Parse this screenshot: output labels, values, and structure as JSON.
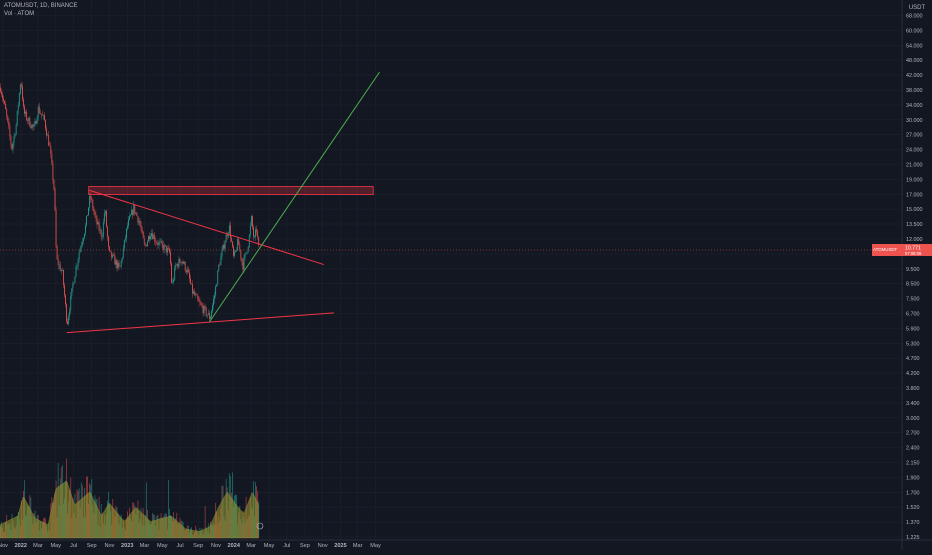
{
  "header": {
    "symbol_line": "ATOMUSDT, 1D, BINANCE",
    "volume_line": "Vol · ATOM"
  },
  "price_scale": {
    "currency": "USDT",
    "current_price_tag": "ATOMUSDT",
    "current_price": "10.771",
    "current_price_sub": "07:08:08"
  },
  "colors": {
    "background": "#131722",
    "up": "#26a69a",
    "down": "#ef5350",
    "trendline_red": "#f23645",
    "trendline_green": "#4caf50",
    "resistance_zone": "#f23645",
    "volume_ma": "#9a9a2e",
    "text": "#b2b5be"
  },
  "chart_data": {
    "type": "candlestick",
    "title": "ATOMUSDT, 1D, BINANCE",
    "y_scale": "log",
    "y_ticks": [
      "68.000",
      "60.000",
      "54.000",
      "48.000",
      "42.000",
      "38.000",
      "34.000",
      "30.000",
      "27.000",
      "24.000",
      "21.000",
      "19.000",
      "17.000",
      "15.000",
      "13.500",
      "12.000",
      "10.500",
      "9.500",
      "8.500",
      "7.500",
      "6.700",
      "5.900",
      "5.300",
      "4.700",
      "4.200",
      "3.800",
      "3.400",
      "3.000",
      "2.700",
      "2.400",
      "2.150",
      "1.900",
      "1.700",
      "1.520",
      "1.370",
      "1.225"
    ],
    "x_ticks": [
      "Nov",
      "2022",
      "Mar",
      "May",
      "Jul",
      "Sep",
      "Nov",
      "2023",
      "Mar",
      "May",
      "Jul",
      "Sep",
      "Nov",
      "2024",
      "Mar",
      "May",
      "Jul",
      "Sep",
      "Nov",
      "2025",
      "Mar",
      "May"
    ],
    "price_path": [
      {
        "date": "2021-11-01",
        "close": 39
      },
      {
        "date": "2021-11-20",
        "close": 32
      },
      {
        "date": "2021-12-10",
        "close": 24
      },
      {
        "date": "2021-12-25",
        "close": 29
      },
      {
        "date": "2022-01-10",
        "close": 42
      },
      {
        "date": "2022-01-20",
        "close": 32
      },
      {
        "date": "2022-02-05",
        "close": 30
      },
      {
        "date": "2022-02-25",
        "close": 28
      },
      {
        "date": "2022-03-10",
        "close": 33
      },
      {
        "date": "2022-04-01",
        "close": 30
      },
      {
        "date": "2022-04-20",
        "close": 24
      },
      {
        "date": "2022-05-05",
        "close": 17
      },
      {
        "date": "2022-05-12",
        "close": 10
      },
      {
        "date": "2022-06-01",
        "close": 9
      },
      {
        "date": "2022-06-18",
        "close": 6
      },
      {
        "date": "2022-07-10",
        "close": 8.5
      },
      {
        "date": "2022-08-01",
        "close": 11
      },
      {
        "date": "2022-08-20",
        "close": 13
      },
      {
        "date": "2022-09-05",
        "close": 16.5
      },
      {
        "date": "2022-09-25",
        "close": 13.5
      },
      {
        "date": "2022-10-15",
        "close": 12
      },
      {
        "date": "2022-10-25",
        "close": 15
      },
      {
        "date": "2022-11-08",
        "close": 10.5
      },
      {
        "date": "2022-11-25",
        "close": 10
      },
      {
        "date": "2022-12-15",
        "close": 9.2
      },
      {
        "date": "2023-01-10",
        "close": 13
      },
      {
        "date": "2023-02-01",
        "close": 15
      },
      {
        "date": "2023-02-20",
        "close": 13.5
      },
      {
        "date": "2023-03-10",
        "close": 11
      },
      {
        "date": "2023-04-01",
        "close": 12.5
      },
      {
        "date": "2023-04-20",
        "close": 11.5
      },
      {
        "date": "2023-05-15",
        "close": 11
      },
      {
        "date": "2023-06-05",
        "close": 10.5
      },
      {
        "date": "2023-06-12",
        "close": 8
      },
      {
        "date": "2023-06-25",
        "close": 9.5
      },
      {
        "date": "2023-07-15",
        "close": 10
      },
      {
        "date": "2023-08-05",
        "close": 9
      },
      {
        "date": "2023-08-20",
        "close": 7.8
      },
      {
        "date": "2023-09-15",
        "close": 7
      },
      {
        "date": "2023-10-10",
        "close": 6.5
      },
      {
        "date": "2023-10-20",
        "close": 6.3
      },
      {
        "date": "2023-11-05",
        "close": 7.5
      },
      {
        "date": "2023-11-20",
        "close": 9.5
      },
      {
        "date": "2023-12-10",
        "close": 11.5
      },
      {
        "date": "2023-12-25",
        "close": 13
      },
      {
        "date": "2024-01-10",
        "close": 10
      },
      {
        "date": "2024-01-25",
        "close": 11.5
      },
      {
        "date": "2024-02-10",
        "close": 9.5
      },
      {
        "date": "2024-03-01",
        "close": 11.5
      },
      {
        "date": "2024-03-10",
        "close": 13.8
      },
      {
        "date": "2024-03-20",
        "close": 11.5
      },
      {
        "date": "2024-03-28",
        "close": 12.8
      },
      {
        "date": "2024-04-05",
        "close": 10.77
      }
    ],
    "volume_path": [
      {
        "date": "2021-11-01",
        "volume": 0.12
      },
      {
        "date": "2022-01-01",
        "volume": 0.2
      },
      {
        "date": "2022-01-20",
        "volume": 0.38
      },
      {
        "date": "2022-03-01",
        "volume": 0.18
      },
      {
        "date": "2022-04-15",
        "volume": 0.12
      },
      {
        "date": "2022-05-12",
        "volume": 0.45
      },
      {
        "date": "2022-06-18",
        "volume": 0.52
      },
      {
        "date": "2022-07-15",
        "volume": 0.3
      },
      {
        "date": "2022-09-05",
        "volume": 0.42
      },
      {
        "date": "2022-10-15",
        "volume": 0.2
      },
      {
        "date": "2022-11-10",
        "volume": 0.32
      },
      {
        "date": "2023-01-01",
        "volume": 0.15
      },
      {
        "date": "2023-02-10",
        "volume": 0.28
      },
      {
        "date": "2023-04-01",
        "volume": 0.15
      },
      {
        "date": "2023-06-10",
        "volume": 0.2
      },
      {
        "date": "2023-08-01",
        "volume": 0.08
      },
      {
        "date": "2023-09-15",
        "volume": 0.06
      },
      {
        "date": "2023-10-20",
        "volume": 0.1
      },
      {
        "date": "2023-11-20",
        "volume": 0.28
      },
      {
        "date": "2023-12-20",
        "volume": 0.42
      },
      {
        "date": "2024-01-20",
        "volume": 0.3
      },
      {
        "date": "2024-02-15",
        "volume": 0.22
      },
      {
        "date": "2024-03-15",
        "volume": 0.42
      },
      {
        "date": "2024-04-05",
        "volume": 0.3
      }
    ],
    "drawings": [
      {
        "kind": "zone",
        "from": "2022-09-01",
        "to": "2025-04-30",
        "low": 16.7,
        "high": 17.8
      },
      {
        "kind": "trendline",
        "color": "red",
        "points": [
          {
            "date": "2022-09-01",
            "price": 17.3
          },
          {
            "date": "2024-11-15",
            "price": 9.6
          }
        ]
      },
      {
        "kind": "trendline",
        "color": "red",
        "points": [
          {
            "date": "2022-06-18",
            "price": 5.6
          },
          {
            "date": "2024-12-20",
            "price": 6.55
          }
        ]
      },
      {
        "kind": "trendline",
        "color": "green",
        "points": [
          {
            "date": "2023-10-20",
            "price": 6.1
          },
          {
            "date": "2025-05-25",
            "price": 44
          }
        ]
      }
    ]
  }
}
